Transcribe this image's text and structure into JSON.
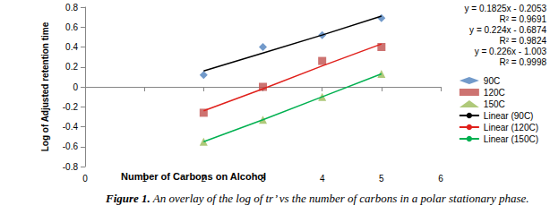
{
  "chart_data": {
    "type": "scatter",
    "x_label": "Number of Carbons on Alcohol",
    "y_label": "Log of Adjusted retention time",
    "caption": {
      "label": "Figure 1.",
      "text": "An overlay of the log of tr’ vs the number of carbons in a polar stationary phase."
    },
    "annotations": [
      "y = 0.1825x - 0.2053",
      "R² = 0.9691",
      "y = 0.224x - 0.6874",
      "R² = 0.9824",
      "y = 0.226x - 1.003",
      "R² = 0.9998"
    ],
    "x": [
      2,
      3,
      4,
      5
    ],
    "series": [
      {
        "name": "90C",
        "type": "scatter",
        "color": "#4f81bd",
        "marker": "diamond",
        "values": [
          0.12,
          0.4,
          0.52,
          0.69
        ]
      },
      {
        "name": "120C",
        "type": "scatter",
        "color": "#c0504d",
        "marker": "square",
        "values": [
          -0.26,
          0.0,
          0.26,
          0.4
        ]
      },
      {
        "name": "150C",
        "type": "scatter",
        "color": "#9bbb59",
        "marker": "triangle",
        "values": [
          -0.55,
          -0.33,
          -0.1,
          0.13
        ]
      },
      {
        "name": "Linear (90C)",
        "type": "line",
        "color": "#000000",
        "line_style": "solid",
        "values": [
          0.16,
          0.34,
          0.52,
          0.71
        ]
      },
      {
        "name": "Linear (120C)",
        "type": "line",
        "color": "#e0201b",
        "line_style": "solid",
        "values": [
          -0.24,
          -0.02,
          0.21,
          0.43
        ]
      },
      {
        "name": "Linear (150C)",
        "type": "line",
        "color": "#00b050",
        "line_style": "solid",
        "values": [
          -0.55,
          -0.33,
          -0.1,
          0.13
        ]
      }
    ],
    "xlim": [
      0,
      6
    ],
    "xticks": [
      0,
      1,
      2,
      3,
      4,
      5,
      6
    ],
    "ylim": [
      -0.8,
      0.8
    ],
    "yticks": [
      -0.8,
      -0.6,
      -0.4,
      -0.2,
      0,
      0.2,
      0.4,
      0.6,
      0.8
    ],
    "grid": false,
    "legend": "right"
  }
}
